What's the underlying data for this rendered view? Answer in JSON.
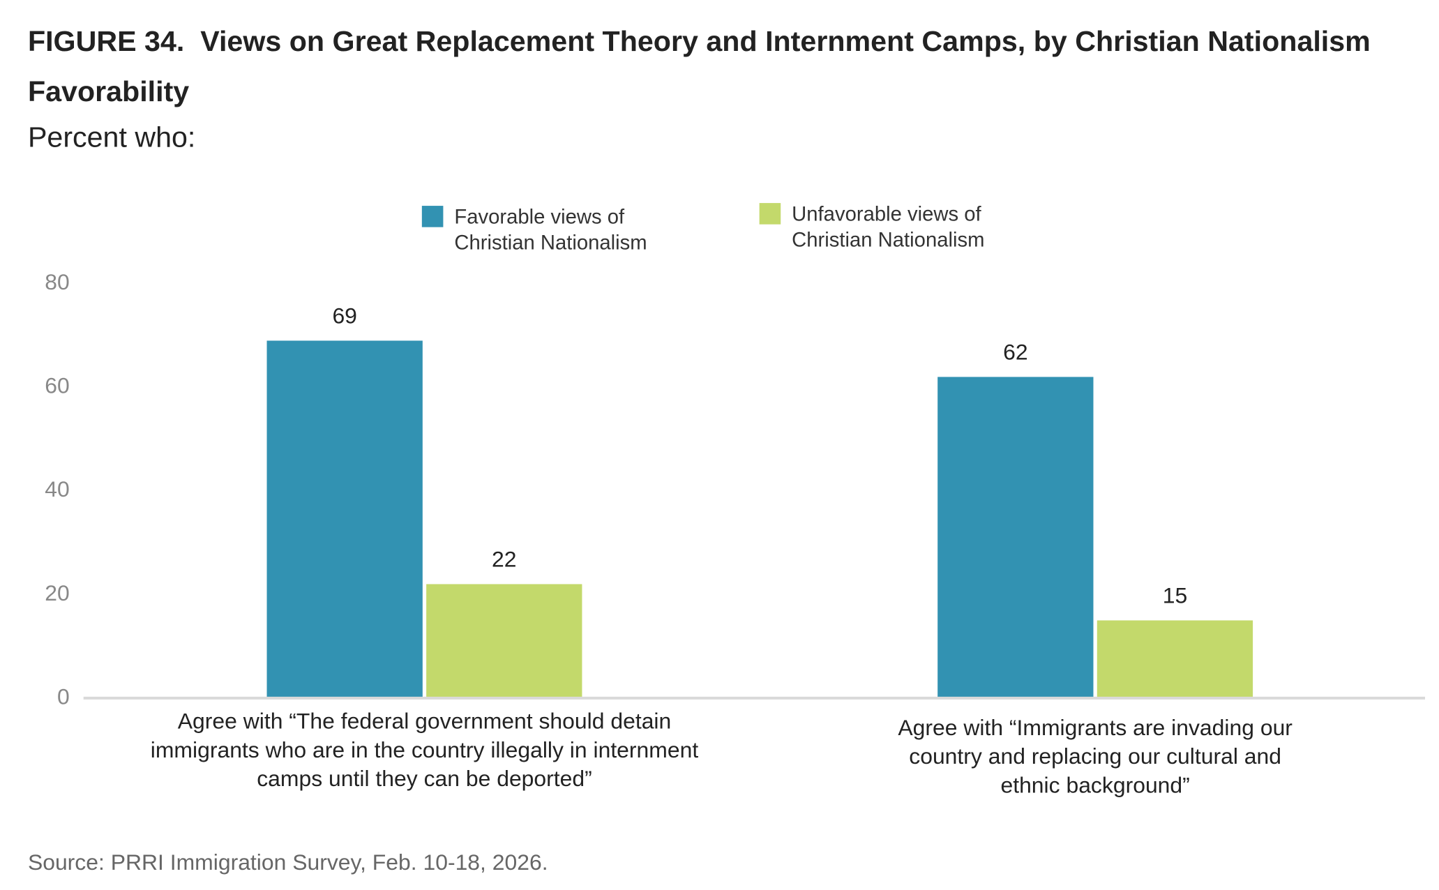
{
  "chart_data": {
    "type": "bar",
    "title": "FIGURE 34.  Views on Great Replacement Theory and Internment Camps, by Christian Nationalism Favorability",
    "subtitle": "Percent who:",
    "source": "Source: PRRI Immigration Survey, Feb. 10-18, 2026.",
    "categories": [
      "Agree with “The federal government should detain immigrants who are in the country illegally in internment camps until they can be deported”",
      "Agree with “Immigrants are invading our country and replacing our cultural and ethnic background”"
    ],
    "series": [
      {
        "name": "Favorable views of Christian Nationalism",
        "color": "#3292b2",
        "values": [
          69,
          62
        ]
      },
      {
        "name": "Unfavorable views of Christian Nationalism",
        "color": "#c3d96b",
        "values": [
          22,
          15
        ]
      }
    ],
    "ylim": [
      0,
      80
    ],
    "yticks": [
      0,
      20,
      40,
      60,
      80
    ],
    "grid": false,
    "legend": "top"
  }
}
